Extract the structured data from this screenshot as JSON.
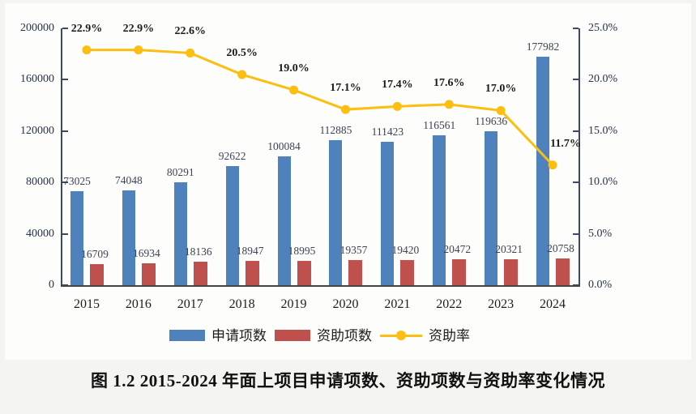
{
  "chart_data": {
    "type": "bar",
    "note": "combo bar + line chart",
    "categories": [
      "2015",
      "2016",
      "2017",
      "2018",
      "2019",
      "2020",
      "2021",
      "2022",
      "2023",
      "2024"
    ],
    "series": [
      {
        "name": "申请项数",
        "type": "bar",
        "color": "#4f81bd",
        "values": [
          73025,
          74048,
          80291,
          92622,
          100084,
          112885,
          111423,
          116561,
          119636,
          177982
        ]
      },
      {
        "name": "资助项数",
        "type": "bar",
        "color": "#c0504d",
        "values": [
          16709,
          16934,
          18136,
          18947,
          18995,
          19357,
          19420,
          20472,
          20321,
          20758
        ]
      },
      {
        "name": "资助率",
        "type": "line",
        "color": "#fcbe11",
        "values": [
          22.9,
          22.9,
          22.6,
          20.5,
          19.0,
          17.1,
          17.4,
          17.6,
          17.0,
          11.7
        ],
        "point_labels": [
          "22.9%",
          "22.9%",
          "22.6%",
          "20.5%",
          "19.0%",
          "17.1%",
          "17.4%",
          "17.6%",
          "17.0%",
          "11.7%"
        ]
      }
    ],
    "left_axis": {
      "min": 0,
      "max": 200000,
      "step": 40000,
      "tick_labels": [
        "0",
        "40000",
        "80000",
        "120000",
        "160000",
        "200000"
      ]
    },
    "right_axis": {
      "min": 0,
      "max": 25,
      "step": 5,
      "tick_labels": [
        "0.0%",
        "5.0%",
        "10.0%",
        "15.0%",
        "20.0%",
        "25.0%"
      ]
    },
    "legend": [
      "申请项数",
      "资助项数",
      "资助率"
    ],
    "legend_position": "bottom",
    "grid": false,
    "title": "",
    "xlabel": "",
    "ylabel": ""
  },
  "caption": "图 1.2  2015-2024 年面上项目申请项数、资助项数与资助率变化情况",
  "colors": {
    "bar_blue": "#4f81bd",
    "bar_red": "#c0504d",
    "line_yellow": "#fcbe11",
    "axis": "#3a4a63",
    "background": "#f4f4f1",
    "plot_background": "#fdfdfb"
  }
}
